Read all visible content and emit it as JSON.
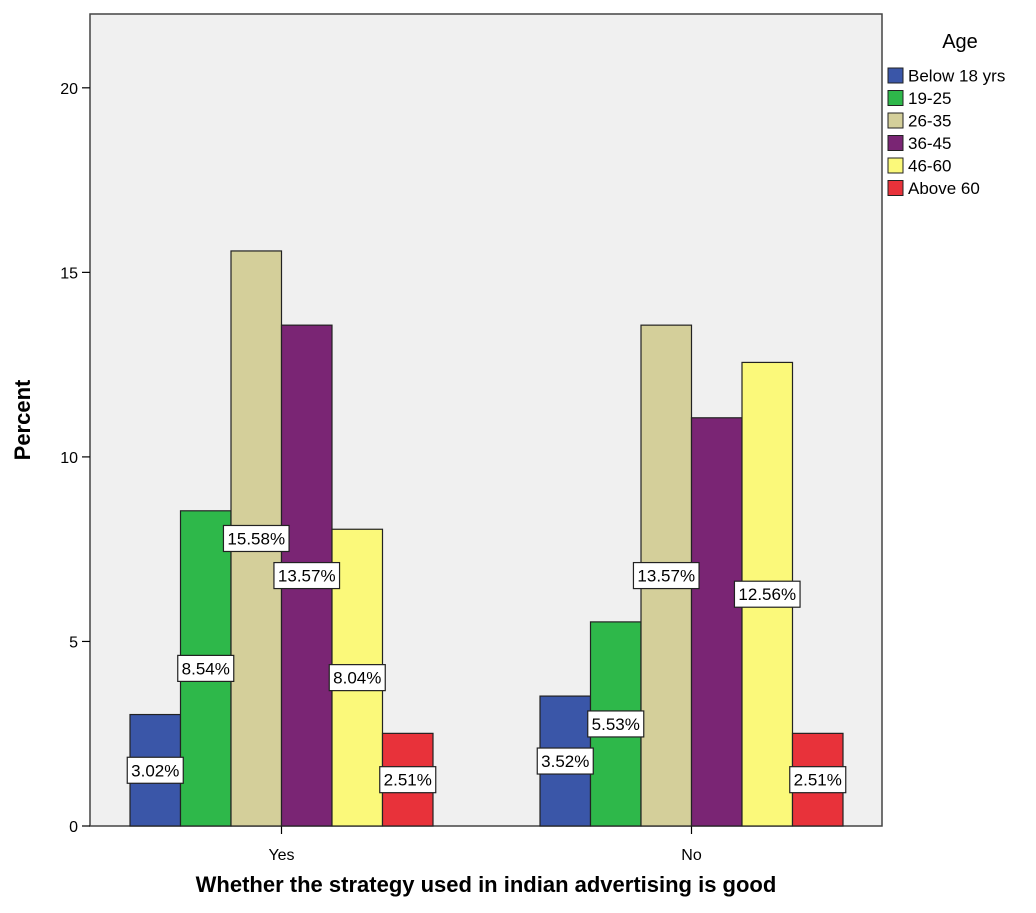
{
  "chart_data": {
    "type": "bar",
    "title": "",
    "xlabel": "Whether the strategy used in indian advertising is  good",
    "ylabel": "Percent",
    "ylim": [
      0,
      22
    ],
    "yticks": [
      0,
      5,
      10,
      15,
      20
    ],
    "categories": [
      "Yes",
      "No"
    ],
    "legend_title": "Age",
    "legend_position": "right",
    "grid": false,
    "series": [
      {
        "name": "Below 18 yrs",
        "color": "#3a56a8",
        "values": [
          3.02,
          3.52
        ],
        "labels": [
          "3.02%",
          "3.52%"
        ]
      },
      {
        "name": "19-25",
        "color": "#2eb84a",
        "values": [
          8.54,
          5.53
        ],
        "labels": [
          "8.54%",
          "5.53%"
        ]
      },
      {
        "name": "26-35",
        "color": "#d4cf9a",
        "values": [
          15.58,
          13.57
        ],
        "labels": [
          "15.58%",
          "13.57%"
        ]
      },
      {
        "name": "36-45",
        "color": "#7a2574",
        "values": [
          13.57,
          11.06
        ],
        "labels": [
          "13.57%",
          ""
        ]
      },
      {
        "name": "46-60",
        "color": "#fbf97a",
        "values": [
          8.04,
          12.56
        ],
        "labels": [
          "8.04%",
          "12.56%"
        ]
      },
      {
        "name": "Above 60",
        "color": "#e8323a",
        "values": [
          2.51,
          2.51
        ],
        "labels": [
          "2.51%",
          "2.51%"
        ]
      }
    ]
  },
  "colors": {
    "plot_background": "#f0f0f0",
    "frame": "#444444"
  }
}
